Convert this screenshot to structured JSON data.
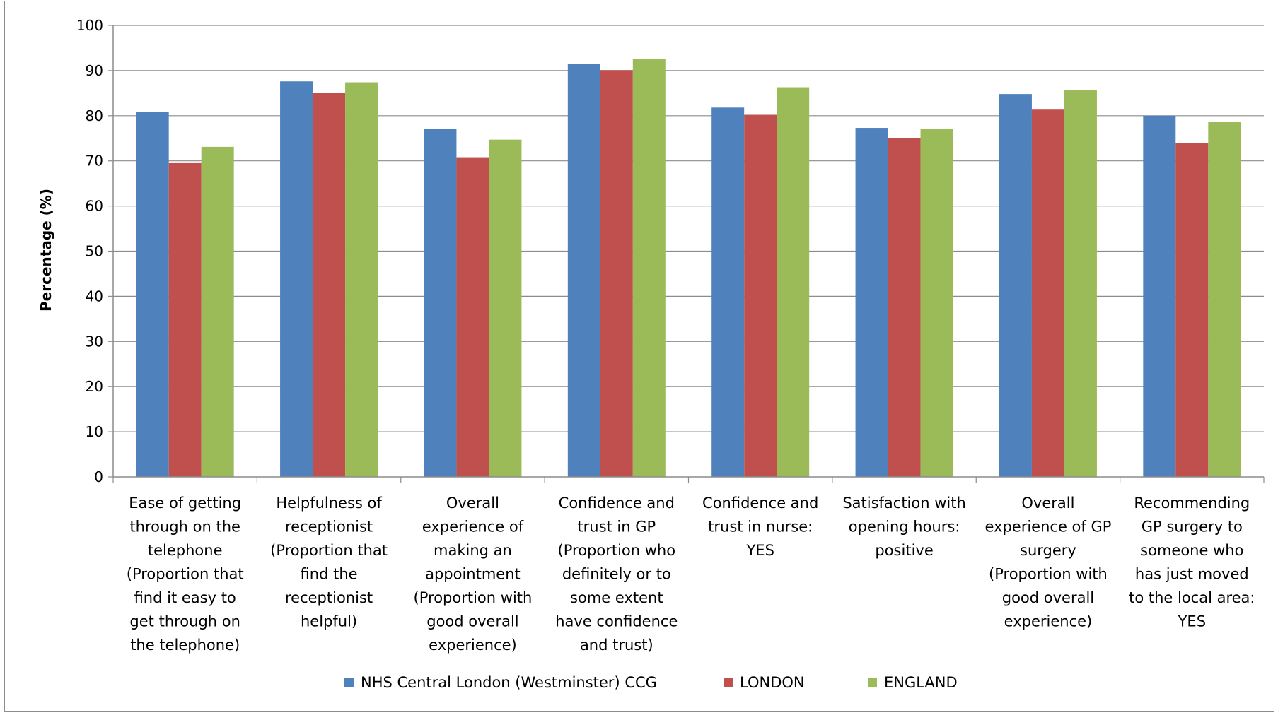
{
  "chart_data": {
    "type": "bar",
    "title": "",
    "xlabel": "",
    "ylabel": "Percentage (%)",
    "ylim": [
      0,
      100
    ],
    "yticks": [
      0,
      10,
      20,
      30,
      40,
      50,
      60,
      70,
      80,
      90,
      100
    ],
    "grid": true,
    "legend_position": "bottom",
    "categories": [
      [
        "Ease of getting",
        "through on the",
        "telephone",
        "(Proportion that",
        "find it  easy to",
        "get through on",
        "the telephone)"
      ],
      [
        "Helpfulness of",
        "receptionist",
        "(Proportion that",
        "find the",
        "receptionist",
        "helpful)"
      ],
      [
        "Overall",
        "experience of",
        "making an",
        "appointment",
        "(Proportion with",
        "good overall",
        "experience)"
      ],
      [
        "Confidence and",
        "trust in GP",
        "(Proportion who",
        "definitely or to",
        "some extent",
        "have confidence",
        "and trust)"
      ],
      [
        "Confidence and",
        "trust in nurse:",
        "YES"
      ],
      [
        "Satisfaction with",
        "opening hours:",
        "positive"
      ],
      [
        "Overall",
        "experience of GP",
        "surgery",
        "(Proportion with",
        "good overall",
        "experience)"
      ],
      [
        "Recommending",
        "GP surgery to",
        "someone who",
        "has just moved",
        "to the local area:",
        "YES"
      ]
    ],
    "series": [
      {
        "name": "NHS Central London (Westminster) CCG",
        "color": "#4f81bd",
        "values": [
          80.8,
          87.6,
          77.0,
          91.5,
          81.8,
          77.3,
          84.8,
          80.0
        ]
      },
      {
        "name": "LONDON",
        "color": "#c0504d",
        "values": [
          69.5,
          85.1,
          70.8,
          90.1,
          80.2,
          75.0,
          81.5,
          74.0
        ]
      },
      {
        "name": "ENGLAND",
        "color": "#9bbb59",
        "values": [
          73.1,
          87.4,
          74.7,
          92.5,
          86.3,
          77.0,
          85.7,
          78.6
        ]
      }
    ]
  }
}
